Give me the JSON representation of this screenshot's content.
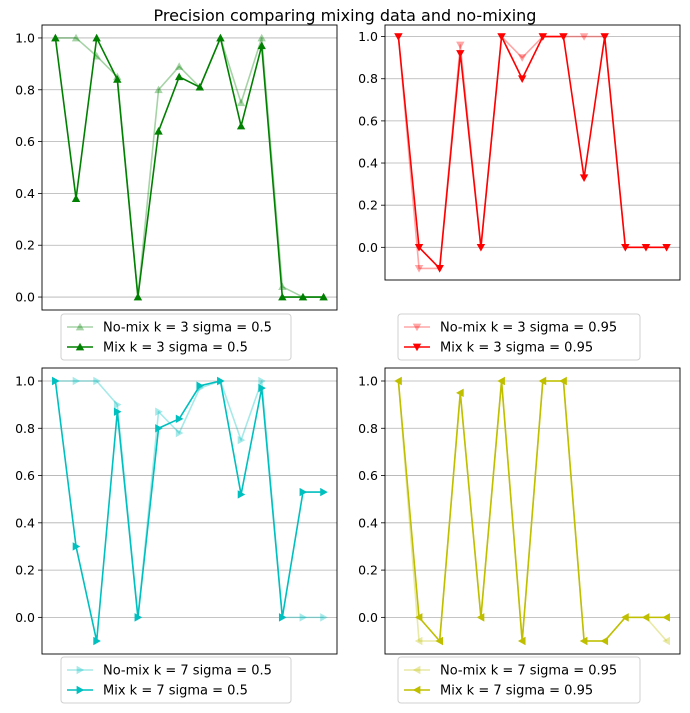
{
  "figure": {
    "title": "Precision comparing mixing data and no-mixing"
  },
  "chart_data": [
    {
      "type": "line",
      "x": [
        0,
        1,
        2,
        3,
        4,
        5,
        6,
        7,
        8,
        9,
        10,
        11,
        12,
        13
      ],
      "ylim": [
        -0.05,
        1.05
      ],
      "yticks": [
        "0.0",
        "0.2",
        "0.4",
        "0.6",
        "0.8",
        "1.0"
      ],
      "grid": "y",
      "legend_position": "below",
      "marker": "triangle-up",
      "series": [
        {
          "name": "No-mix k = 3 sigma = 0.5",
          "color": "#008000",
          "alpha": 0.35,
          "values": [
            1.0,
            1.0,
            0.93,
            0.85,
            0.0,
            0.8,
            0.89,
            0.81,
            1.0,
            0.75,
            1.0,
            0.04,
            0.0,
            0.0
          ]
        },
        {
          "name": "Mix k = 3 sigma = 0.5",
          "color": "#008000",
          "alpha": 1.0,
          "values": [
            1.0,
            0.38,
            1.0,
            0.84,
            0.0,
            0.64,
            0.85,
            0.81,
            1.0,
            0.66,
            0.97,
            0.0,
            0.0,
            0.0
          ]
        }
      ]
    },
    {
      "type": "line",
      "x": [
        0,
        1,
        2,
        3,
        4,
        5,
        6,
        7,
        8,
        9,
        10,
        11,
        12,
        13
      ],
      "ylim": [
        -0.155,
        1.055
      ],
      "yticks": [
        "0.0",
        "0.2",
        "0.4",
        "0.6",
        "0.8",
        "1.0"
      ],
      "grid": "y",
      "legend_position": "below",
      "marker": "triangle-down",
      "series": [
        {
          "name": "No-mix k = 3 sigma = 0.95",
          "color": "#ff0000",
          "alpha": 0.35,
          "values": [
            1.0,
            -0.1,
            -0.1,
            0.96,
            0.0,
            1.0,
            0.9,
            1.0,
            1.0,
            1.0,
            1.0,
            0.0,
            0.0,
            0.0
          ]
        },
        {
          "name": "Mix k = 3 sigma = 0.95",
          "color": "#ff0000",
          "alpha": 1.0,
          "values": [
            1.0,
            0.0,
            -0.1,
            0.92,
            0.0,
            1.0,
            0.8,
            1.0,
            1.0,
            0.33,
            1.0,
            0.0,
            0.0,
            0.0
          ]
        }
      ]
    },
    {
      "type": "line",
      "x": [
        0,
        1,
        2,
        3,
        4,
        5,
        6,
        7,
        8,
        9,
        10,
        11,
        12,
        13
      ],
      "ylim": [
        -0.155,
        1.055
      ],
      "yticks": [
        "0.0",
        "0.2",
        "0.4",
        "0.6",
        "0.8",
        "1.0"
      ],
      "grid": "y",
      "legend_position": "below",
      "marker": "triangle-right",
      "series": [
        {
          "name": "No-mix k = 7 sigma = 0.5",
          "color": "#00bfbf",
          "alpha": 0.35,
          "values": [
            1.0,
            1.0,
            1.0,
            0.9,
            0.0,
            0.87,
            0.78,
            0.97,
            1.0,
            0.75,
            1.0,
            0.0,
            0.0,
            0.0
          ]
        },
        {
          "name": "Mix k = 7 sigma = 0.5",
          "color": "#00bfbf",
          "alpha": 1.0,
          "values": [
            1.0,
            0.3,
            -0.1,
            0.87,
            0.0,
            0.8,
            0.84,
            0.98,
            1.0,
            0.52,
            0.97,
            0.0,
            0.53,
            0.53
          ]
        }
      ]
    },
    {
      "type": "line",
      "x": [
        0,
        1,
        2,
        3,
        4,
        5,
        6,
        7,
        8,
        9,
        10,
        11,
        12,
        13
      ],
      "ylim": [
        -0.155,
        1.055
      ],
      "yticks": [
        "0.0",
        "0.2",
        "0.4",
        "0.6",
        "0.8",
        "1.0"
      ],
      "grid": "y",
      "legend_position": "below",
      "marker": "triangle-left",
      "series": [
        {
          "name": "No-mix k = 7 sigma = 0.95",
          "color": "#bfbf00",
          "alpha": 0.35,
          "values": [
            1.0,
            -0.1,
            -0.1,
            0.95,
            0.0,
            1.0,
            -0.1,
            1.0,
            1.0,
            -0.1,
            -0.1,
            0.0,
            0.0,
            -0.1
          ]
        },
        {
          "name": "Mix k = 7 sigma = 0.95",
          "color": "#bfbf00",
          "alpha": 1.0,
          "values": [
            1.0,
            0.0,
            -0.1,
            0.95,
            0.0,
            1.0,
            -0.1,
            1.0,
            1.0,
            -0.1,
            -0.1,
            0.0,
            0.0,
            0.0
          ]
        }
      ]
    }
  ]
}
